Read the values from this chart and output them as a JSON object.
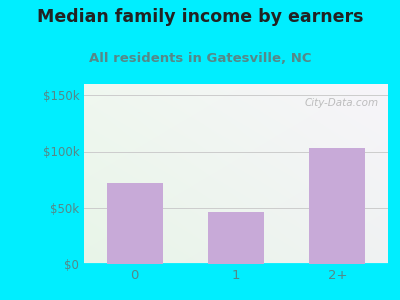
{
  "title": "Median family income by earners",
  "subtitle": "All residents in Gatesville, NC",
  "categories": [
    "0",
    "1",
    "2+"
  ],
  "values": [
    72000,
    46000,
    103000
  ],
  "bar_color": "#c8aad8",
  "title_fontsize": 12.5,
  "subtitle_fontsize": 9.5,
  "title_color": "#222222",
  "subtitle_color": "#558888",
  "tick_color": "#558888",
  "ylim": [
    0,
    160000
  ],
  "yticks": [
    0,
    50000,
    100000,
    150000
  ],
  "ytick_labels": [
    "$0",
    "$50k",
    "$100k",
    "$150k"
  ],
  "bg_outer": "#00eeff",
  "watermark": "City-Data.com",
  "grid_color": "#cccccc",
  "bg_grad_topleft": "#e8f5e8",
  "bg_grad_topright": "#f5f5f8",
  "bg_grad_bottom": "#e0f0e0"
}
